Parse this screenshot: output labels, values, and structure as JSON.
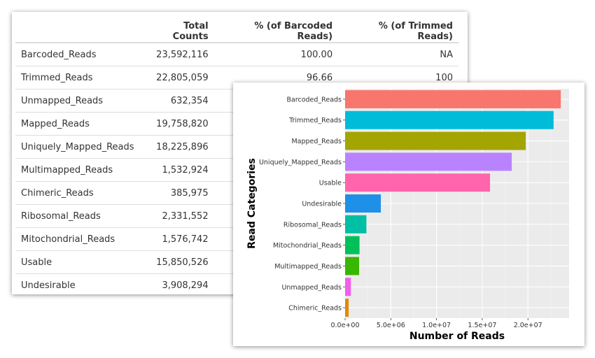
{
  "table": {
    "headers": [
      "",
      "Total Counts",
      "% (of Barcoded Reads)",
      "% (of Trimmed Reads)"
    ],
    "rows": [
      [
        "Barcoded_Reads",
        "23,592,116",
        "100.00",
        "NA"
      ],
      [
        "Trimmed_Reads",
        "22,805,059",
        "96.66",
        "100"
      ],
      [
        "Unmapped_Reads",
        "632,354",
        "",
        ""
      ],
      [
        "Mapped_Reads",
        "19,758,820",
        "",
        ""
      ],
      [
        "Uniquely_Mapped_Reads",
        "18,225,896",
        "",
        ""
      ],
      [
        "Multimapped_Reads",
        "1,532,924",
        "",
        ""
      ],
      [
        "Chimeric_Reads",
        "385,975",
        "",
        ""
      ],
      [
        "Ribosomal_Reads",
        "2,331,552",
        "",
        ""
      ],
      [
        "Mitochondrial_Reads",
        "1,576,742",
        "",
        ""
      ],
      [
        "Usable",
        "15,850,526",
        "",
        ""
      ],
      [
        "Undesirable",
        "3,908,294",
        "",
        ""
      ]
    ]
  },
  "chart_data": {
    "type": "bar",
    "orientation": "horizontal",
    "xlabel": "Number of Reads",
    "ylabel": "Read Categories",
    "xlim": [
      0,
      24500000
    ],
    "xticks": [
      0,
      5000000,
      10000000,
      15000000,
      20000000
    ],
    "xtick_labels": [
      "0.0e+00",
      "5.0e+06",
      "1.0e+07",
      "1.5e+07",
      "2.0e+07"
    ],
    "grid": true,
    "categories": [
      "Barcoded_Reads",
      "Trimmed_Reads",
      "Mapped_Reads",
      "Uniquely_Mapped_Reads",
      "Usable",
      "Undesirable",
      "Ribosomal_Reads",
      "Mitochondrial_Reads",
      "Multimapped_Reads",
      "Unmapped_Reads",
      "Chimeric_Reads"
    ],
    "values": [
      23592116,
      22805059,
      19758820,
      18225896,
      15850526,
      3908294,
      2331552,
      1576742,
      1532924,
      632354,
      385975
    ],
    "colors": [
      "#F8766D",
      "#00BCD8",
      "#A3A500",
      "#B983FF",
      "#FF65AC",
      "#1E90E8",
      "#00BFA4",
      "#00C05A",
      "#39B600",
      "#F060EA",
      "#E08B00"
    ]
  }
}
